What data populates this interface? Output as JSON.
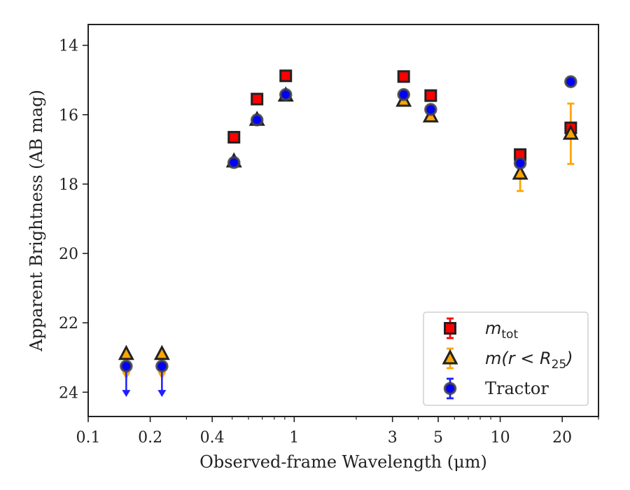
{
  "chart_data": {
    "type": "scatter",
    "xlabel": "Observed-frame Wavelength (μm)",
    "ylabel": "Apparent Brightness (AB mag)",
    "x_scale": "log",
    "xlim": [
      0.1,
      30
    ],
    "ylim": [
      24.7,
      13.4
    ],
    "y_inverted": true,
    "x_ticks": [
      0.1,
      0.2,
      0.4,
      1,
      3,
      5,
      10,
      20
    ],
    "x_tick_labels": [
      "0.1",
      "0.2",
      "0.4",
      "1",
      "3",
      "5",
      "10",
      "20"
    ],
    "y_ticks": [
      14,
      16,
      18,
      20,
      22,
      24
    ],
    "y_tick_labels": [
      "14",
      "16",
      "18",
      "20",
      "22",
      "24"
    ],
    "grid": false,
    "legend_position": "lower-right",
    "series": [
      {
        "key": "mtot",
        "marker": "square",
        "color": "#ff0000",
        "errcolor": "#ff0000",
        "legend_main": "m",
        "legend_sub": "tot",
        "legend_tail": "",
        "points": [
          {
            "x": 0.51,
            "y": 16.65,
            "err": 0
          },
          {
            "x": 0.66,
            "y": 15.55,
            "err": 0
          },
          {
            "x": 0.91,
            "y": 14.88,
            "err": 0
          },
          {
            "x": 3.4,
            "y": 14.9,
            "err": 0
          },
          {
            "x": 4.6,
            "y": 15.45,
            "err": 0
          },
          {
            "x": 12.5,
            "y": 17.15,
            "err": 0
          },
          {
            "x": 22,
            "y": 16.38,
            "err": 0
          }
        ]
      },
      {
        "key": "mr25",
        "marker": "triangle",
        "color": "#ffa500",
        "errcolor": "#ffa500",
        "legend_main": "m(r < R",
        "legend_sub": "25",
        "legend_tail": ")",
        "points": [
          {
            "x": 0.153,
            "y": 22.9,
            "upper_limit": true
          },
          {
            "x": 0.228,
            "y": 22.9,
            "upper_limit": true
          },
          {
            "x": 0.51,
            "y": 17.35,
            "err": 0
          },
          {
            "x": 0.66,
            "y": 16.15,
            "err": 0
          },
          {
            "x": 0.91,
            "y": 15.45,
            "err": 0
          },
          {
            "x": 3.4,
            "y": 15.6,
            "err": 0
          },
          {
            "x": 4.6,
            "y": 16.05,
            "err": 0
          },
          {
            "x": 12.5,
            "y": 17.7,
            "err": 0.5
          },
          {
            "x": 22,
            "y": 16.55,
            "err": 0.87
          }
        ]
      },
      {
        "key": "tractor",
        "marker": "circle",
        "color": "#0000ff",
        "errcolor": "#1f1fff",
        "legend_main": "Tractor",
        "legend_sub": "",
        "legend_tail": "",
        "points": [
          {
            "x": 0.153,
            "y": 23.25,
            "upper_limit": true
          },
          {
            "x": 0.228,
            "y": 23.25,
            "upper_limit": true
          },
          {
            "x": 0.51,
            "y": 17.38,
            "err": 0
          },
          {
            "x": 0.66,
            "y": 16.15,
            "err": 0
          },
          {
            "x": 0.91,
            "y": 15.42,
            "err": 0
          },
          {
            "x": 3.4,
            "y": 15.42,
            "err": 0
          },
          {
            "x": 4.6,
            "y": 15.85,
            "err": 0
          },
          {
            "x": 12.5,
            "y": 17.4,
            "err": 0
          },
          {
            "x": 22,
            "y": 15.05,
            "err": 0
          }
        ]
      }
    ]
  }
}
